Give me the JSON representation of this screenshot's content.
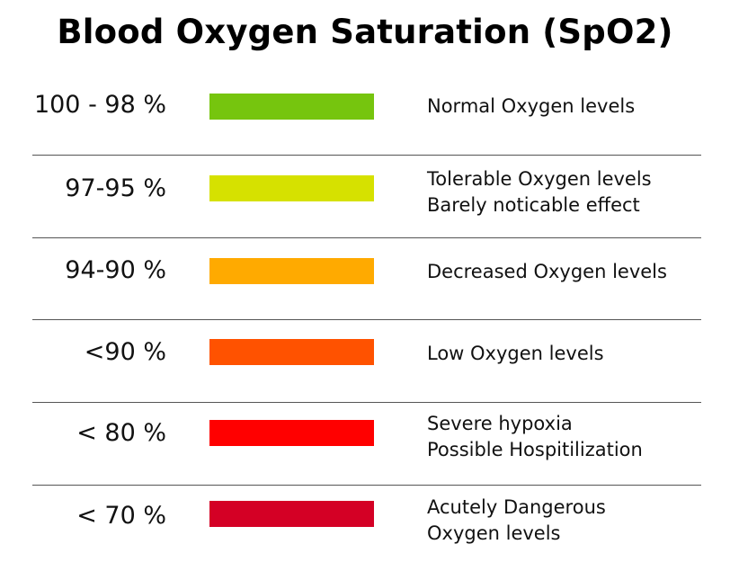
{
  "title": "Blood Oxygen Saturation (SpO2)",
  "levels": [
    {
      "range": "100 - 98 %",
      "color": "#76c50e",
      "lines": [
        "Normal Oxygen levels"
      ]
    },
    {
      "range": "97-95 %",
      "color": "#d6e100",
      "lines": [
        "Tolerable Oxygen levels",
        "Barely noticable effect"
      ]
    },
    {
      "range": "94-90 %",
      "color": "#ffaa00",
      "lines": [
        "Decreased Oxygen levels"
      ]
    },
    {
      "range": "<90 %",
      "color": "#ff5200",
      "lines": [
        "Low Oxygen levels"
      ]
    },
    {
      "range": "< 80  %",
      "color": "#ff0000",
      "lines": [
        "Severe hypoxia",
        "Possible Hospitilization"
      ]
    },
    {
      "range": "< 70 %",
      "color": "#d40025",
      "lines": [
        "Acutely Dangerous",
        "Oxygen levels"
      ]
    }
  ]
}
